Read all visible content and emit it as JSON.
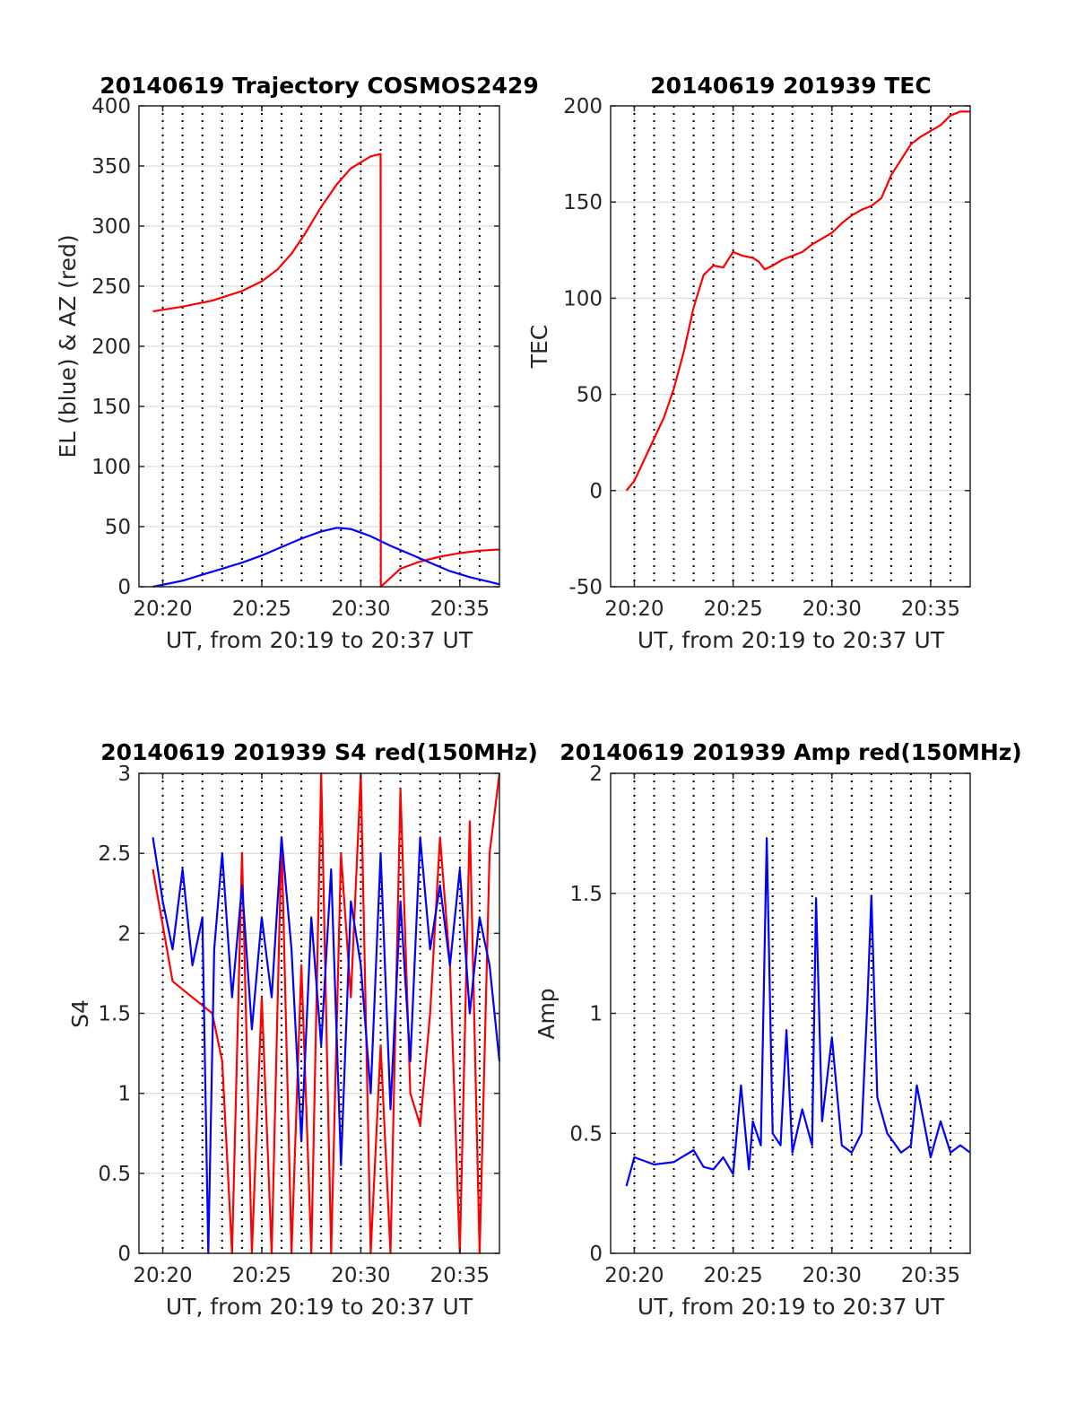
{
  "figure": {
    "colors": {
      "red": "#ff0000",
      "blue": "#0000ff",
      "axis": "#262626",
      "grid": "#dfdfdf"
    }
  },
  "chart_data": [
    {
      "id": "trajectory",
      "type": "line",
      "title": "20140619 Trajectory COSMOS2429",
      "xlabel": "UT, from 20:19 to 20:37 UT",
      "ylabel": "EL (blue) & AZ (red)",
      "xlim": [
        "20:18.8",
        "20:37.0"
      ],
      "ylim": [
        0,
        400
      ],
      "x_ticks": [
        "20:20",
        "20:25",
        "20:30",
        "20:35"
      ],
      "y_ticks": [
        "0",
        "50",
        "100",
        "150",
        "200",
        "250",
        "300",
        "350",
        "400"
      ],
      "grid": true,
      "vertical_dotted_lines_minutes": [
        20,
        21,
        22,
        23,
        24,
        25,
        26,
        27,
        28,
        29,
        30,
        31,
        32,
        33,
        34,
        35,
        36
      ],
      "series": [
        {
          "color": "#ff0000",
          "x": [
            "20:19.5",
            "20:21",
            "20:22.5",
            "20:24",
            "20:25",
            "20:25.8",
            "20:26.5",
            "20:27.2",
            "20:28",
            "20:28.8",
            "20:29.5",
            "20:30.5",
            "20:31",
            "20:31.01",
            "20:32",
            "20:33",
            "20:34",
            "20:35",
            "20:36",
            "20:37"
          ],
          "y": [
            229,
            233,
            238,
            246,
            254,
            264,
            277,
            294,
            316,
            335,
            348,
            358,
            360,
            0,
            15,
            21,
            25,
            28,
            30,
            31
          ]
        },
        {
          "color": "#0000ff",
          "x": [
            "20:19.5",
            "20:21",
            "20:22",
            "20:23",
            "20:24",
            "20:25",
            "20:26",
            "20:27",
            "20:28",
            "20:28.8",
            "20:29.5",
            "20:30.5",
            "20:31.5",
            "20:32.5",
            "20:33.5",
            "20:34.5",
            "20:35.5",
            "20:36.5",
            "20:37"
          ],
          "y": [
            0,
            5,
            10,
            15,
            20,
            26,
            33,
            40,
            46,
            49,
            48,
            42,
            34,
            27,
            20,
            13,
            8,
            4,
            2
          ]
        }
      ]
    },
    {
      "id": "tec",
      "type": "line",
      "title": "20140619 201939 TEC",
      "xlabel": "UT, from 20:19 to 20:37 UT",
      "ylabel": "TEC",
      "xlim": [
        "20:18.8",
        "20:37.0"
      ],
      "ylim": [
        -50,
        200
      ],
      "x_ticks": [
        "20:20",
        "20:25",
        "20:30",
        "20:35"
      ],
      "y_ticks": [
        "-50",
        "0",
        "50",
        "100",
        "150",
        "200"
      ],
      "grid": true,
      "vertical_dotted_lines_minutes": [
        20,
        21,
        22,
        23,
        24,
        25,
        26,
        27,
        28,
        29,
        30,
        31,
        32,
        33,
        34,
        35,
        36
      ],
      "series": [
        {
          "color": "#ff0000",
          "x": [
            "20:19.6",
            "20:20",
            "20:21",
            "20:21.5",
            "20:22",
            "20:22.5",
            "20:23",
            "20:23.5",
            "20:24",
            "20:24.5",
            "20:25",
            "20:25.5",
            "20:26",
            "20:26.3",
            "20:26.6",
            "20:27",
            "20:27.5",
            "20:28",
            "20:28.5",
            "20:29",
            "20:29.5",
            "20:30",
            "20:30.5",
            "20:31",
            "20:31.5",
            "20:32",
            "20:32.5",
            "20:33",
            "20:33.5",
            "20:34",
            "20:34.5",
            "20:35",
            "20:35.5",
            "20:36",
            "20:36.5",
            "20:37"
          ],
          "y": [
            0,
            5,
            27,
            38,
            53,
            72,
            95,
            112,
            117,
            116,
            124,
            122,
            121,
            119,
            115,
            117,
            120,
            122,
            124,
            128,
            131,
            134,
            139,
            143,
            146,
            148,
            152,
            164,
            172,
            180,
            184,
            187,
            190,
            195,
            197,
            197
          ]
        }
      ]
    },
    {
      "id": "s4",
      "type": "line",
      "title": "20140619 201939 S4 red(150MHz)",
      "xlabel": "UT, from 20:19 to 20:37 UT",
      "ylabel": "S4",
      "xlim": [
        "20:18.8",
        "20:37.0"
      ],
      "ylim": [
        0,
        3
      ],
      "x_ticks": [
        "20:20",
        "20:25",
        "20:30",
        "20:35"
      ],
      "y_ticks": [
        "0",
        "0.5",
        "1",
        "1.5",
        "2",
        "2.5",
        "3"
      ],
      "grid": true,
      "vertical_dotted_lines_minutes": [
        20,
        21,
        22,
        23,
        24,
        25,
        26,
        27,
        28,
        29,
        30,
        31,
        32,
        33,
        34,
        35,
        36
      ],
      "series": [
        {
          "color": "#ff0000",
          "x": [
            "20:19.5",
            "20:20.5",
            "20:21.5",
            "20:22.5",
            "20:23",
            "20:23.5",
            "20:24",
            "20:24.5",
            "20:25",
            "20:25.5",
            "20:26",
            "20:26.5",
            "20:27",
            "20:27.5",
            "20:28",
            "20:28.5",
            "20:29",
            "20:29.5",
            "20:30",
            "20:30.5",
            "20:31",
            "20:31.5",
            "20:32",
            "20:32.5",
            "20:33",
            "20:33.5",
            "20:34",
            "20:34.5",
            "20:35",
            "20:35.5",
            "20:36",
            "20:36.5",
            "20:37"
          ],
          "y": [
            2.4,
            1.7,
            1.6,
            1.5,
            1.2,
            0,
            2.5,
            0,
            1.6,
            0,
            2.6,
            0,
            1.8,
            0,
            3.0,
            0,
            2.5,
            1.6,
            3.0,
            0,
            1.3,
            0,
            2.9,
            1.0,
            0.8,
            1.5,
            2.6,
            1.8,
            0,
            2.7,
            0,
            2.5,
            3.0
          ]
        },
        {
          "color": "#0000ff",
          "x": [
            "20:19.5",
            "20:20",
            "20:20.5",
            "20:21",
            "20:21.5",
            "20:22",
            "20:22.3",
            "20:22.6",
            "20:23",
            "20:23.5",
            "20:24",
            "20:24.5",
            "20:25",
            "20:25.5",
            "20:26",
            "20:26.5",
            "20:27",
            "20:27.5",
            "20:28",
            "20:28.5",
            "20:29",
            "20:29.5",
            "20:30",
            "20:30.5",
            "20:31",
            "20:31.5",
            "20:32",
            "20:32.5",
            "20:33",
            "20:33.5",
            "20:34",
            "20:34.5",
            "20:35",
            "20:35.5",
            "20:36",
            "20:36.5",
            "20:37"
          ],
          "y": [
            2.6,
            2.2,
            1.9,
            2.4,
            1.8,
            2.1,
            0,
            1.9,
            2.5,
            1.6,
            2.3,
            1.4,
            2.1,
            1.6,
            2.6,
            1.9,
            0.7,
            2.1,
            1.3,
            2.4,
            0.55,
            2.2,
            1.8,
            1.0,
            2.5,
            0.9,
            2.2,
            1.2,
            2.6,
            1.9,
            2.3,
            1.8,
            2.4,
            1.5,
            2.1,
            1.8,
            1.2
          ]
        }
      ]
    },
    {
      "id": "amp",
      "type": "line",
      "title": "20140619 201939 Amp red(150MHz)",
      "xlabel": "UT, from 20:19 to 20:37 UT",
      "ylabel": "Amp",
      "xlim": [
        "20:18.8",
        "20:37.0"
      ],
      "ylim": [
        0,
        2
      ],
      "x_ticks": [
        "20:20",
        "20:25",
        "20:30",
        "20:35"
      ],
      "y_ticks": [
        "0",
        "0.5",
        "1",
        "1.5",
        "2"
      ],
      "grid": true,
      "vertical_dotted_lines_minutes": [
        20,
        21,
        22,
        23,
        24,
        25,
        26,
        27,
        28,
        29,
        30,
        31,
        32,
        33,
        34,
        35,
        36
      ],
      "series": [
        {
          "color": "#0000ff",
          "x": [
            "20:19.6",
            "20:20",
            "20:21",
            "20:22",
            "20:23",
            "20:23.5",
            "20:24",
            "20:24.5",
            "20:25",
            "20:25.4",
            "20:25.8",
            "20:26",
            "20:26.4",
            "20:26.7",
            "20:27",
            "20:27.4",
            "20:27.7",
            "20:28",
            "20:28.5",
            "20:29",
            "20:29.2",
            "20:29.5",
            "20:30",
            "20:30.5",
            "20:31",
            "20:31.5",
            "20:31.8",
            "20:32",
            "20:32.3",
            "20:32.8",
            "20:33.5",
            "20:34",
            "20:34.3",
            "20:35",
            "20:35.5",
            "20:36",
            "20:36.5",
            "20:37"
          ],
          "y": [
            0.28,
            0.4,
            0.37,
            0.38,
            0.43,
            0.36,
            0.35,
            0.4,
            0.33,
            0.7,
            0.35,
            0.55,
            0.45,
            1.73,
            0.5,
            0.45,
            0.93,
            0.42,
            0.6,
            0.45,
            1.48,
            0.55,
            0.9,
            0.45,
            0.42,
            0.5,
            1.05,
            1.49,
            0.65,
            0.5,
            0.42,
            0.45,
            0.7,
            0.4,
            0.55,
            0.42,
            0.45,
            0.42
          ]
        }
      ]
    }
  ]
}
